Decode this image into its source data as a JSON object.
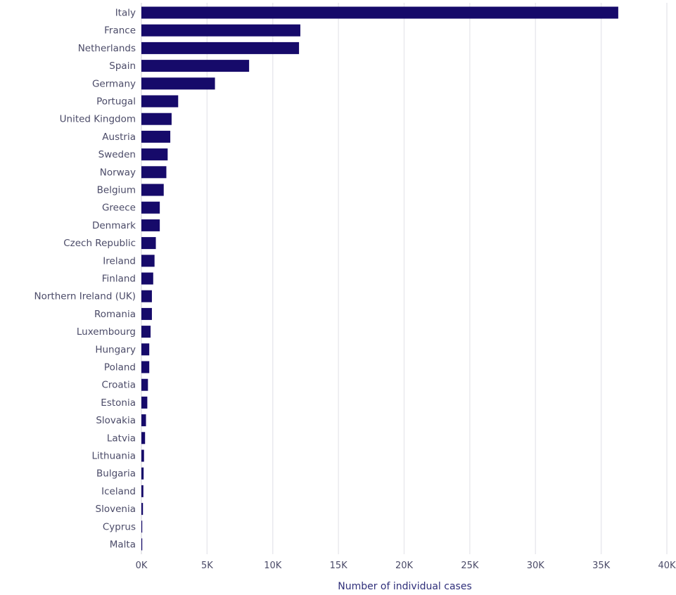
{
  "chart_data": {
    "type": "bar",
    "orientation": "horizontal",
    "categories": [
      "Italy",
      "France",
      "Netherlands",
      "Spain",
      "Germany",
      "Portugal",
      "United Kingdom",
      "Austria",
      "Sweden",
      "Norway",
      "Belgium",
      "Greece",
      "Denmark",
      "Czech Republic",
      "Ireland",
      "Finland",
      "Northern Ireland (UK)",
      "Romania",
      "Luxembourg",
      "Hungary",
      "Poland",
      "Croatia",
      "Estonia",
      "Slovakia",
      "Latvia",
      "Lithuania",
      "Bulgaria",
      "Iceland",
      "Slovenia",
      "Cyprus",
      "Malta"
    ],
    "values": [
      36300,
      12100,
      12000,
      8200,
      5600,
      2800,
      2300,
      2200,
      2000,
      1900,
      1700,
      1400,
      1400,
      1100,
      1000,
      900,
      800,
      800,
      700,
      600,
      600,
      500,
      450,
      350,
      280,
      200,
      170,
      150,
      120,
      50,
      20
    ],
    "title": "",
    "xlabel": "Number of individual cases",
    "ylabel": "",
    "xlim": [
      0,
      40000
    ],
    "x_ticks": [
      {
        "value": 0,
        "label": "0K"
      },
      {
        "value": 5000,
        "label": "5K"
      },
      {
        "value": 10000,
        "label": "10K"
      },
      {
        "value": 15000,
        "label": "15K"
      },
      {
        "value": 20000,
        "label": "20K"
      },
      {
        "value": 25000,
        "label": "25K"
      },
      {
        "value": 30000,
        "label": "30K"
      },
      {
        "value": 35000,
        "label": "35K"
      },
      {
        "value": 40000,
        "label": "40K"
      }
    ],
    "grid": true,
    "legend": "none",
    "colors": {
      "bar": "#160a6a",
      "grid": "#e9e9ee",
      "label": "#4b4b68",
      "axis_title": "#2f2f7a"
    }
  }
}
